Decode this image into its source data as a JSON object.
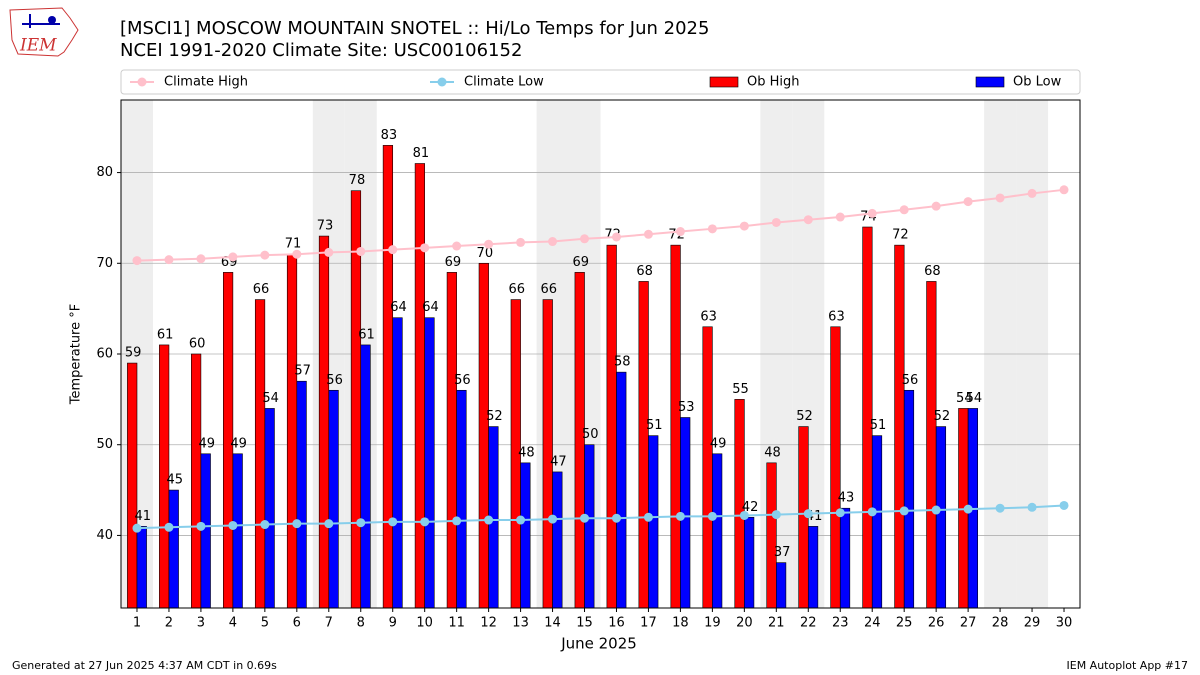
{
  "chart_data": {
    "type": "bar",
    "title": "[MSCI1] MOSCOW MOUNTAIN SNOTEL :: Hi/Lo Temps for Jun 2025",
    "subtitle": "NCEI 1991-2020 Climate Site: USC00106152",
    "logo": "IEM",
    "x_label": "June 2025",
    "y_label": "Temperature °F",
    "footer_left": "Generated at 27 Jun 2025 4:37 AM CDT in 0.69s",
    "footer_right": "IEM Autoplot App #17",
    "x": [
      1,
      2,
      3,
      4,
      5,
      6,
      7,
      8,
      9,
      10,
      11,
      12,
      13,
      14,
      15,
      16,
      17,
      18,
      19,
      20,
      21,
      22,
      23,
      24,
      25,
      26,
      27,
      28,
      29,
      30
    ],
    "xlim": [
      0.5,
      30.5
    ],
    "xticks": [
      1,
      2,
      3,
      4,
      5,
      6,
      7,
      8,
      9,
      10,
      11,
      12,
      13,
      14,
      15,
      16,
      17,
      18,
      19,
      20,
      21,
      22,
      23,
      24,
      25,
      26,
      27,
      28,
      29,
      30
    ],
    "ylim": [
      32,
      88
    ],
    "yticks": [
      40,
      50,
      60,
      70,
      80
    ],
    "grid": true,
    "shaded_x": [
      1,
      7,
      8,
      14,
      15,
      21,
      22,
      28,
      29
    ],
    "shade_color": "#eeeeee",
    "series": [
      {
        "name": "Climate High",
        "type": "line",
        "color": "pink",
        "values": [
          70.3,
          70.4,
          70.5,
          70.7,
          70.9,
          71.0,
          71.2,
          71.3,
          71.5,
          71.7,
          71.9,
          72.1,
          72.3,
          72.4,
          72.7,
          72.9,
          73.2,
          73.5,
          73.8,
          74.1,
          74.5,
          74.8,
          75.1,
          75.5,
          75.9,
          76.3,
          76.8,
          77.2,
          77.7,
          78.1
        ]
      },
      {
        "name": "Climate Low",
        "type": "line",
        "color": "skyblue",
        "values": [
          40.8,
          40.9,
          41.0,
          41.1,
          41.2,
          41.3,
          41.3,
          41.4,
          41.5,
          41.5,
          41.6,
          41.7,
          41.7,
          41.8,
          41.9,
          41.9,
          42.0,
          42.1,
          42.1,
          42.2,
          42.3,
          42.4,
          42.5,
          42.6,
          42.7,
          42.8,
          42.9,
          43.0,
          43.1,
          43.3
        ]
      },
      {
        "name": "Ob High",
        "type": "bar",
        "color": "red",
        "values": [
          59,
          61,
          60,
          69,
          66,
          71,
          73,
          78,
          83,
          81,
          69,
          70,
          66,
          66,
          69,
          72,
          68,
          72,
          63,
          55,
          48,
          52,
          63,
          74,
          72,
          68,
          54,
          null,
          null,
          null
        ]
      },
      {
        "name": "Ob Low",
        "type": "bar",
        "color": "blue",
        "values": [
          41,
          45,
          49,
          49,
          54,
          57,
          56,
          61,
          64,
          64,
          56,
          52,
          48,
          47,
          50,
          58,
          51,
          53,
          49,
          42,
          37,
          41,
          43,
          51,
          56,
          52,
          54,
          null,
          null,
          null
        ]
      }
    ]
  }
}
